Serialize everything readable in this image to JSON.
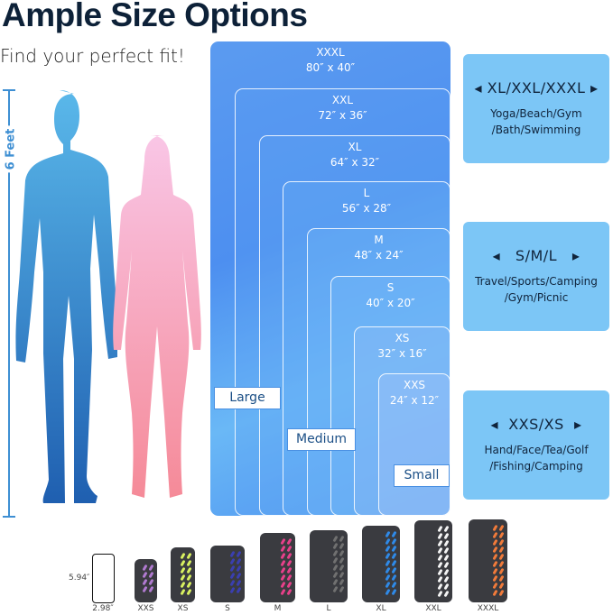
{
  "title": "Ample Size Options",
  "subtitle": "Find your perfect fit!",
  "height_label": "6 Feet",
  "sizes": [
    {
      "name": "XXXL",
      "dims": "80″ x 40″"
    },
    {
      "name": "XXL",
      "dims": "72″ x 36″"
    },
    {
      "name": "XL",
      "dims": "64″ x 32″"
    },
    {
      "name": "L",
      "dims": "56″ x 28″"
    },
    {
      "name": "M",
      "dims": "48″ x 24″"
    },
    {
      "name": "S",
      "dims": "40″ x 20″"
    },
    {
      "name": "XS",
      "dims": "32″ x 16″"
    },
    {
      "name": "XXS",
      "dims": "24″ x 12″"
    }
  ],
  "groups": {
    "large": "Large",
    "medium": "Medium",
    "small": "Small"
  },
  "cards": [
    {
      "heading": "◂ XL/XXL/XXXL ▸",
      "desc": "Yoga/Beach/Gym /Bath/Swimming"
    },
    {
      "heading": "◂   S/M/L   ▸",
      "desc": "Travel/Sports/Camping /Gym/Picnic"
    },
    {
      "heading": "◂  XXS/XS  ▸",
      "desc": "Hand/Face/Tea/Golf /Fishing/Camping"
    }
  ],
  "phone": {
    "height": "5.94″",
    "width": "2.98″"
  },
  "towels": [
    {
      "label": "XXS",
      "color": "#b07ad0"
    },
    {
      "label": "XS",
      "color": "#d8f060"
    },
    {
      "label": "S",
      "color": "#3a3fb0"
    },
    {
      "label": "M",
      "color": "#e8408a"
    },
    {
      "label": "L",
      "color": "#707070"
    },
    {
      "label": "XL",
      "color": "#2f8ae8"
    },
    {
      "label": "XXL",
      "color": "#f4f4f4"
    },
    {
      "label": "XXXL",
      "color": "#f07a3a"
    }
  ]
}
